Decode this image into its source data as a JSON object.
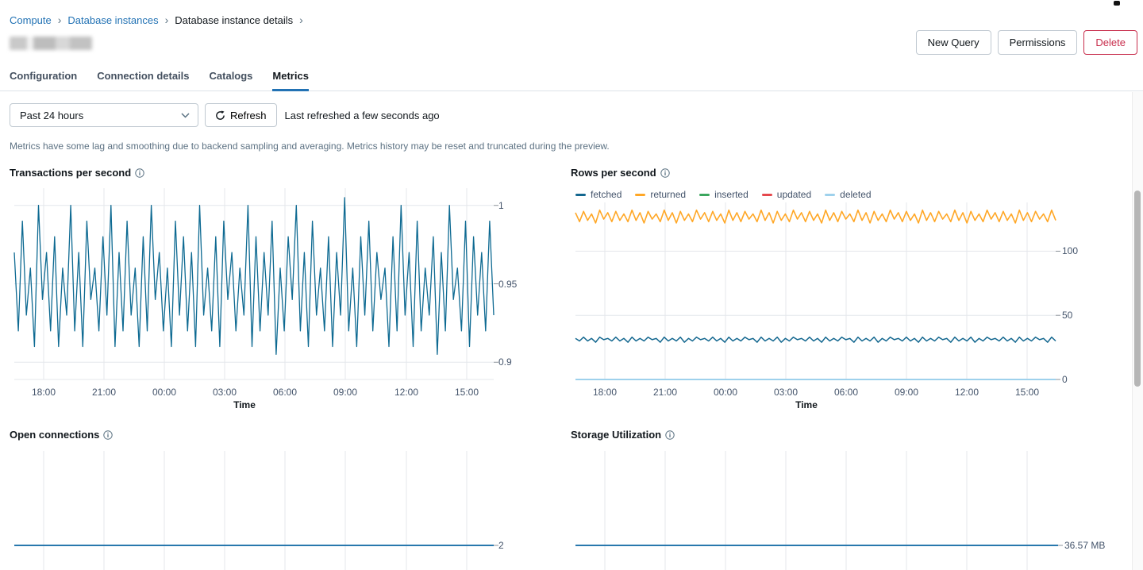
{
  "page": {
    "breadcrumb": {
      "separator": "›",
      "items": [
        "Compute",
        "Database instances",
        "Database instance details"
      ]
    },
    "actions": {
      "new_query": "New Query",
      "permissions": "Permissions",
      "delete": "Delete"
    },
    "tabs": [
      "Configuration",
      "Connection details",
      "Catalogs",
      "Metrics"
    ],
    "active_tab": "Metrics",
    "controls": {
      "time_range": "Past 24 hours",
      "refresh_label": "Refresh",
      "last_refreshed": "Last refreshed a few seconds ago"
    },
    "notice": "Metrics have some lag and smoothing due to backend sampling and averaging. Metrics history may be reset and truncated during the preview."
  },
  "colors": {
    "link_blue": "#2272b4",
    "danger_red": "#c82d4c",
    "gridline": "#e4e7eb",
    "axis_text": "#44546b",
    "tick_mark": "#8a9299"
  },
  "chart_data": [
    {
      "type": "line",
      "title": "Transactions per second",
      "xlabel": "Time",
      "x_ticks": [
        "18:00",
        "21:00",
        "00:00",
        "03:00",
        "06:00",
        "09:00",
        "12:00",
        "15:00"
      ],
      "ylim": [
        0.889,
        1.011
      ],
      "y_ticks": [
        {
          "value": 1,
          "label": "1",
          "grid": true
        },
        {
          "value": 0.95,
          "label": "0.95",
          "grid": true
        },
        {
          "value": 0.9,
          "label": "0.9",
          "grid": true
        }
      ],
      "series": [
        {
          "name": "transactions",
          "color": "#0e6a92",
          "width": 1.3,
          "values": [
            0.97,
            0.92,
            0.99,
            0.93,
            0.96,
            0.91,
            1.0,
            0.94,
            0.97,
            0.92,
            0.98,
            0.91,
            0.96,
            0.93,
            1.0,
            0.92,
            0.97,
            0.91,
            0.99,
            0.94,
            0.96,
            0.92,
            0.98,
            0.93,
            1.0,
            0.91,
            0.97,
            0.92,
            0.99,
            0.93,
            0.96,
            0.91,
            0.98,
            0.92,
            1.0,
            0.94,
            0.97,
            0.92,
            0.96,
            0.91,
            0.99,
            0.93,
            0.98,
            0.92,
            0.97,
            0.91,
            1.0,
            0.93,
            0.96,
            0.92,
            0.98,
            0.91,
            0.99,
            0.94,
            0.97,
            0.92,
            0.96,
            0.93,
            1.0,
            0.91,
            0.98,
            0.92,
            0.97,
            0.93,
            0.99,
            0.905,
            0.96,
            0.92,
            0.98,
            0.94,
            1.0,
            0.92,
            0.97,
            0.91,
            0.99,
            0.93,
            0.96,
            0.92,
            0.98,
            0.91,
            0.97,
            0.93,
            1.005,
            0.92,
            0.96,
            0.91,
            0.98,
            0.93,
            0.99,
            0.92,
            0.97,
            0.94,
            0.96,
            0.91,
            0.98,
            0.92,
            1.0,
            0.93,
            0.97,
            0.91,
            0.99,
            0.92,
            0.96,
            0.93,
            0.98,
            0.905,
            0.97,
            0.92,
            1.0,
            0.94,
            0.96,
            0.92,
            0.99,
            0.91,
            0.98,
            0.93,
            0.97,
            0.92,
            0.99,
            0.93
          ]
        }
      ]
    },
    {
      "type": "line",
      "title": "Rows per second",
      "xlabel": "Time",
      "x_ticks": [
        "18:00",
        "21:00",
        "00:00",
        "03:00",
        "06:00",
        "09:00",
        "12:00",
        "15:00"
      ],
      "ylim": [
        0,
        138
      ],
      "y_ticks": [
        {
          "value": 100,
          "label": "100",
          "grid": true
        },
        {
          "value": 50,
          "label": "50",
          "grid": true
        },
        {
          "value": 0,
          "label": "0",
          "grid": true
        }
      ],
      "legend_position": "top",
      "series": [
        {
          "name": "fetched",
          "color": "#13678f",
          "width": 1.5,
          "values": [
            32,
            30,
            33,
            30,
            32,
            29,
            33,
            31,
            32,
            30,
            33,
            30,
            32,
            29,
            33,
            30,
            32,
            30,
            33,
            31,
            32,
            29,
            33,
            30,
            32,
            30,
            33,
            29,
            32,
            30,
            33,
            31,
            32,
            30,
            33,
            30,
            32,
            29,
            33,
            30,
            32,
            30,
            33,
            31,
            32,
            29,
            33,
            30,
            32,
            30,
            33,
            29,
            32,
            30,
            33,
            31,
            32,
            30,
            33,
            30,
            32,
            29,
            33,
            30,
            32,
            30,
            33,
            31,
            32,
            29,
            33,
            30,
            32,
            30,
            33,
            29,
            32,
            30,
            33,
            31,
            32,
            30,
            33,
            30,
            32,
            29,
            33,
            30,
            32,
            30,
            33,
            31,
            32,
            29,
            33,
            30,
            32,
            30,
            33,
            29,
            32,
            30,
            33,
            31,
            32,
            30,
            33,
            30,
            32,
            29,
            33,
            30,
            32,
            30,
            33,
            31,
            32,
            29,
            33,
            30
          ]
        },
        {
          "name": "returned",
          "color": "#ffa726",
          "width": 1.6,
          "values": [
            130,
            123,
            131,
            124,
            129,
            122,
            132,
            125,
            130,
            123,
            131,
            124,
            129,
            123,
            132,
            124,
            130,
            122,
            131,
            125,
            129,
            123,
            132,
            124,
            130,
            122,
            131,
            124,
            129,
            123,
            132,
            125,
            130,
            123,
            131,
            124,
            129,
            122,
            132,
            124,
            130,
            123,
            131,
            125,
            129,
            123,
            132,
            124,
            130,
            122,
            131,
            124,
            129,
            123,
            132,
            125,
            130,
            123,
            131,
            124,
            129,
            122,
            132,
            124,
            130,
            123,
            131,
            125,
            129,
            123,
            132,
            124,
            130,
            122,
            131,
            124,
            129,
            123,
            132,
            125,
            130,
            123,
            131,
            124,
            129,
            122,
            132,
            124,
            130,
            123,
            131,
            125,
            129,
            123,
            132,
            124,
            130,
            122,
            131,
            124,
            129,
            123,
            132,
            125,
            130,
            123,
            131,
            124,
            129,
            122,
            132,
            124,
            130,
            123,
            131,
            125,
            129,
            123,
            132,
            124
          ]
        },
        {
          "name": "inserted",
          "color": "#3ba65e",
          "width": 1.5,
          "values": [
            0,
            0
          ]
        },
        {
          "name": "updated",
          "color": "#e5484d",
          "width": 1.5,
          "values": [
            0,
            0
          ]
        },
        {
          "name": "deleted",
          "color": "#9ed1ec",
          "width": 2,
          "values": [
            0,
            0
          ]
        }
      ]
    },
    {
      "type": "line",
      "title": "Open connections",
      "xlabel": "",
      "x_ticks": [],
      "ylim": [
        0,
        9.68
      ],
      "y_ticks": [
        {
          "value": 2,
          "label": "2",
          "grid": false
        }
      ],
      "series": [
        {
          "name": "open connections",
          "color": "#2878ad",
          "width": 2,
          "values": [
            2,
            2
          ]
        }
      ]
    },
    {
      "type": "line",
      "title": "Storage Utilization",
      "xlabel": "",
      "x_ticks": [],
      "ylim": [
        0,
        177
      ],
      "y_ticks": [
        {
          "value": 36.57,
          "label": "36.57 MB",
          "grid": false
        }
      ],
      "series": [
        {
          "name": "storage",
          "color": "#2878ad",
          "width": 2,
          "values": [
            36.57,
            36.57
          ]
        }
      ]
    }
  ]
}
